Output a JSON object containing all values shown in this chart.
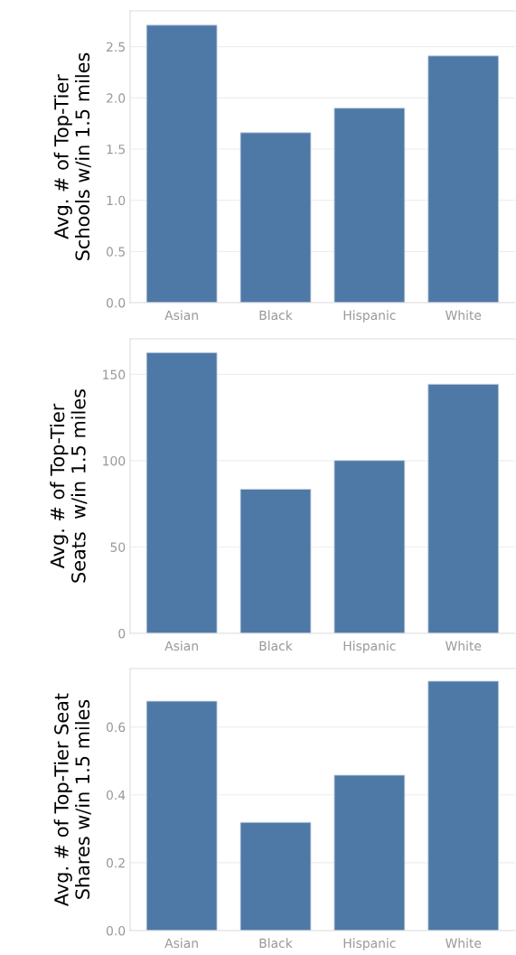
{
  "chart_data": [
    {
      "type": "bar",
      "ylabel": "Avg. # of Top-Tier\nSchools w/in 1.5 miles",
      "categories": [
        "Asian",
        "Black",
        "Hispanic",
        "White"
      ],
      "values": [
        2.71,
        1.66,
        1.9,
        2.41
      ],
      "color": "#4e79a7",
      "ylim": [
        0,
        2.85
      ],
      "yticks": [
        {
          "value": 0,
          "label": "0.0"
        },
        0.5,
        {
          "value": 1,
          "label": "1.0"
        },
        1.5,
        {
          "value": 2,
          "label": "2.0"
        },
        2.5
      ],
      "grid": "y"
    },
    {
      "type": "bar",
      "ylabel": "Avg. # of Top-Tier\nSeats  w/in 1.5 miles",
      "categories": [
        "Asian",
        "Black",
        "Hispanic",
        "White"
      ],
      "values": [
        162.6,
        83.5,
        100.1,
        144.3
      ],
      "color": "#4e79a7",
      "ylim": [
        0,
        170.6
      ],
      "yticks": [
        0,
        50,
        100,
        150
      ],
      "grid": "y"
    },
    {
      "type": "bar",
      "ylabel": "Avg. # of Top-Tier Seat\nShares w/in 1.5 miles",
      "categories": [
        "Asian",
        "Black",
        "Hispanic",
        "White"
      ],
      "values": [
        0.676,
        0.319,
        0.458,
        0.735
      ],
      "color": "#4e79a7",
      "ylim": [
        0,
        0.772
      ],
      "yticks": [
        {
          "value": 0,
          "label": "0.0"
        },
        0.2,
        0.4,
        0.6
      ],
      "grid": "y"
    }
  ]
}
